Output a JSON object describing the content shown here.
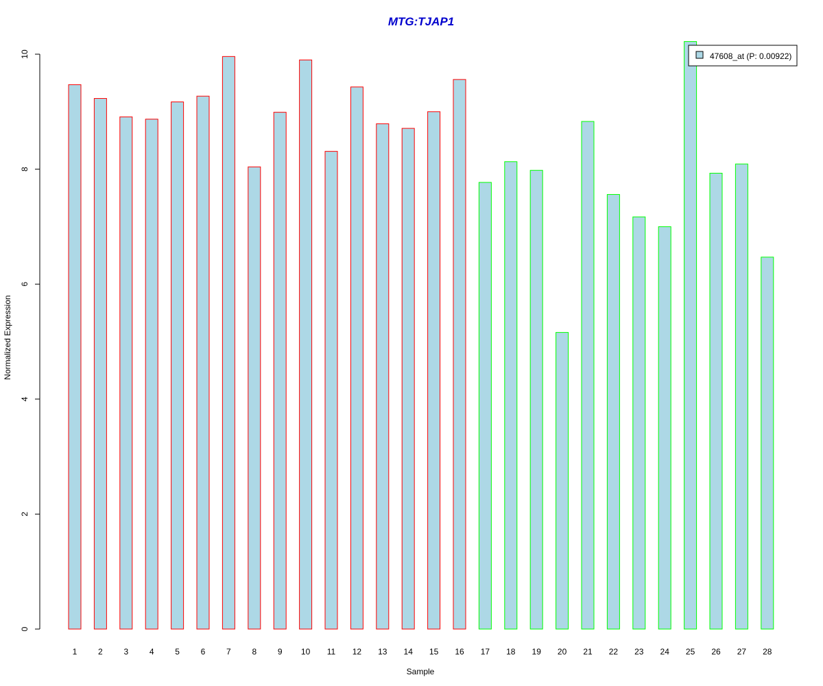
{
  "chart_data": {
    "type": "bar",
    "title": "MTG:TJAP1",
    "xlabel": "Sample",
    "ylabel": "Normalized Expression",
    "ylim": [
      0,
      10
    ],
    "yticks": [
      0,
      2,
      4,
      6,
      8,
      10
    ],
    "categories": [
      "1",
      "2",
      "3",
      "4",
      "5",
      "6",
      "7",
      "8",
      "9",
      "10",
      "11",
      "12",
      "13",
      "14",
      "15",
      "16",
      "17",
      "18",
      "19",
      "20",
      "21",
      "22",
      "23",
      "24",
      "25",
      "26",
      "27",
      "28"
    ],
    "values": [
      9.47,
      9.23,
      8.91,
      8.87,
      9.17,
      9.27,
      9.96,
      8.04,
      8.99,
      9.9,
      8.31,
      9.43,
      8.79,
      8.71,
      9.0,
      9.56,
      7.77,
      8.13,
      7.98,
      5.16,
      8.83,
      7.56,
      7.17,
      7.0,
      10.22,
      7.93,
      8.09,
      6.47
    ],
    "group_colors": [
      "#ff0000",
      "#ff0000",
      "#ff0000",
      "#ff0000",
      "#ff0000",
      "#ff0000",
      "#ff0000",
      "#ff0000",
      "#ff0000",
      "#ff0000",
      "#ff0000",
      "#ff0000",
      "#ff0000",
      "#ff0000",
      "#ff0000",
      "#ff0000",
      "#00ff00",
      "#00ff00",
      "#00ff00",
      "#00ff00",
      "#00ff00",
      "#00ff00",
      "#00ff00",
      "#00ff00",
      "#00ff00",
      "#00ff00",
      "#00ff00",
      "#00ff00"
    ],
    "bar_fill": "#add8e6",
    "title_color": "#0000cd",
    "legend": {
      "label": "47608_at (P: 0.00922)",
      "position": "top-right"
    },
    "grid": false
  }
}
